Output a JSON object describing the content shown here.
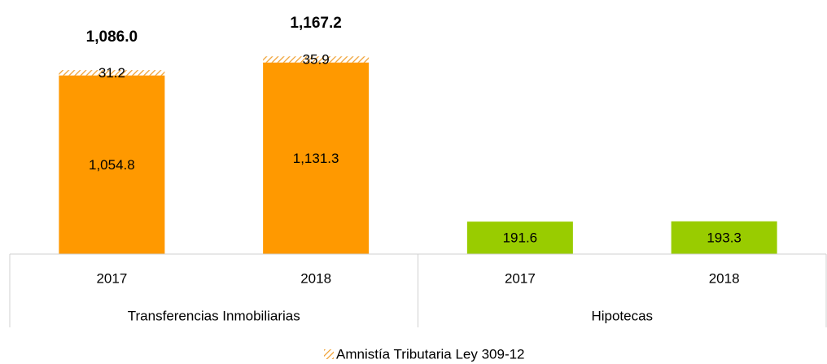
{
  "chart_data": {
    "type": "stacked_bar",
    "categories": [
      "2017",
      "2018",
      "2017",
      "2018"
    ],
    "groups": [
      "Transferencias Inmobiliarias",
      "Hipotecas"
    ],
    "series": [
      {
        "values": [
          1054.8,
          1131.3,
          191.6,
          193.3
        ],
        "value_labels": [
          "1,054.8",
          "1,131.3",
          "191.6",
          "193.3"
        ],
        "colors": [
          "#ff9900",
          "#ff9900",
          "#99cc00",
          "#99cc00"
        ]
      },
      {
        "name": "Amnistía Tributaria Ley 309-12",
        "values": [
          31.2,
          35.9,
          null,
          null
        ],
        "color": "#f0a030",
        "hatch": true
      }
    ],
    "totals": [
      1086.0,
      1167.2,
      null,
      null
    ],
    "total_labels": [
      "1,086.0",
      "1,167.2",
      null,
      null
    ],
    "ylim": [
      0,
      1500
    ],
    "legend": "bottom"
  }
}
